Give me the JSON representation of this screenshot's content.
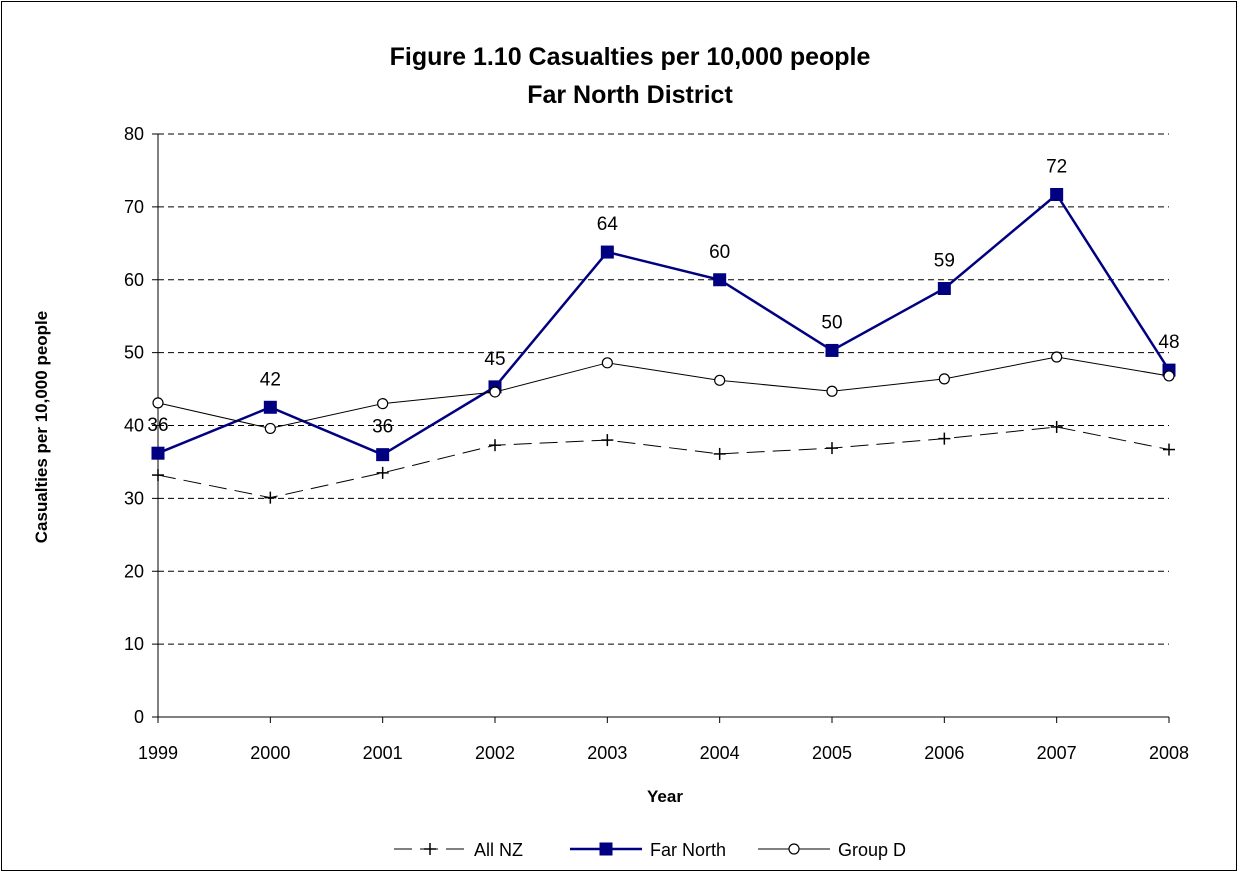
{
  "chart_data": {
    "type": "line",
    "title": "Figure 1.10 Casualties per 10,000 people",
    "subtitle": "Far North District",
    "xlabel": "Year",
    "ylabel": "Casualties per 10,000 people",
    "categories": [
      "1999",
      "2000",
      "2001",
      "2002",
      "2003",
      "2004",
      "2005",
      "2006",
      "2007",
      "2008"
    ],
    "ylim": [
      0,
      80
    ],
    "yticks": [
      0,
      10,
      20,
      30,
      40,
      50,
      60,
      70,
      80
    ],
    "grid": "horizontal dashed",
    "legend_position": "bottom",
    "series": [
      {
        "name": "All NZ",
        "values": [
          33.2,
          30.1,
          33.5,
          37.3,
          38.0,
          36.1,
          36.9,
          38.2,
          39.8,
          36.7
        ],
        "color": "#000000",
        "line_style": "dashed",
        "marker": "plus"
      },
      {
        "name": "Far North",
        "values": [
          36.2,
          42.5,
          36.0,
          45.3,
          63.8,
          60.0,
          50.3,
          58.8,
          71.7,
          47.6
        ],
        "data_labels": [
          "36",
          "42",
          "36",
          "45",
          "64",
          "60",
          "50",
          "59",
          "72",
          "48"
        ],
        "color": "#000080",
        "line_style": "solid",
        "marker": "square"
      },
      {
        "name": "Group D",
        "values": [
          43.1,
          39.6,
          43.0,
          44.6,
          48.6,
          46.2,
          44.7,
          46.4,
          49.4,
          46.8
        ],
        "color": "#000000",
        "line_style": "solid",
        "marker": "circle"
      }
    ]
  }
}
